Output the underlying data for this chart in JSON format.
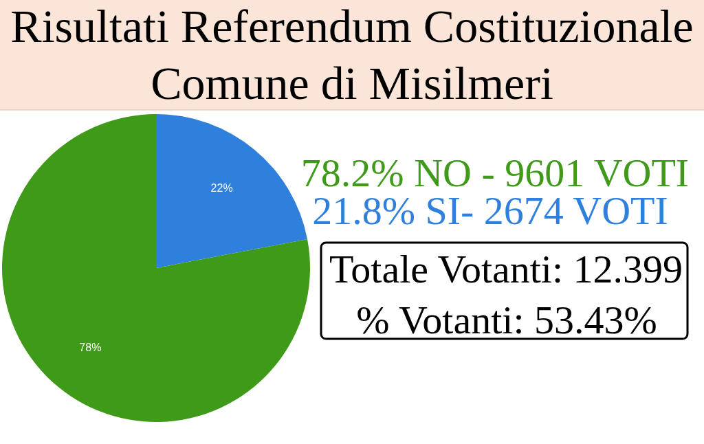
{
  "chart_data": {
    "type": "pie",
    "title": "Risultati Referendum Costituzionale\nComune di Misilmeri",
    "categories": [
      null,
      null
    ],
    "values": [
      22,
      78
    ],
    "colors": [
      "#2f80dc",
      "#3e9a18"
    ],
    "value_labels": [
      "22%",
      "78%"
    ],
    "annotations": [
      "78.2% NO - 9601 VOTI",
      "21.8% SI- 2674 VOTI",
      "Totale Votanti: 12.399",
      "% Votanti: 53.43%"
    ]
  }
}
